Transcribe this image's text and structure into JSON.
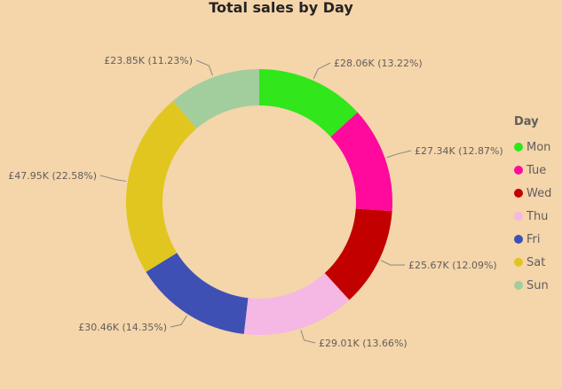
{
  "chart_data": {
    "type": "donut",
    "title": "Total sales by Day",
    "legend_title": "Day",
    "legend_position": "right",
    "categories": [
      "Mon",
      "Tue",
      "Wed",
      "Thu",
      "Fri",
      "Sat",
      "Sun"
    ],
    "values": [
      28.06,
      27.34,
      25.67,
      29.01,
      30.46,
      47.95,
      23.85
    ],
    "percentages": [
      13.22,
      12.87,
      12.09,
      13.66,
      14.35,
      22.58,
      11.23
    ],
    "data_labels": [
      "£28.06K (13.22%)",
      "£27.34K (12.87%)",
      "£25.67K (12.09%)",
      "£29.01K (13.66%)",
      "£30.46K (14.35%)",
      "£47.95K (22.58%)",
      "£23.85K (11.23%)"
    ],
    "colors": [
      "#31E61B",
      "#FF0A9C",
      "#C20000",
      "#F5B7E3",
      "#3F50B5",
      "#E0C61F",
      "#A1CE9C"
    ]
  }
}
